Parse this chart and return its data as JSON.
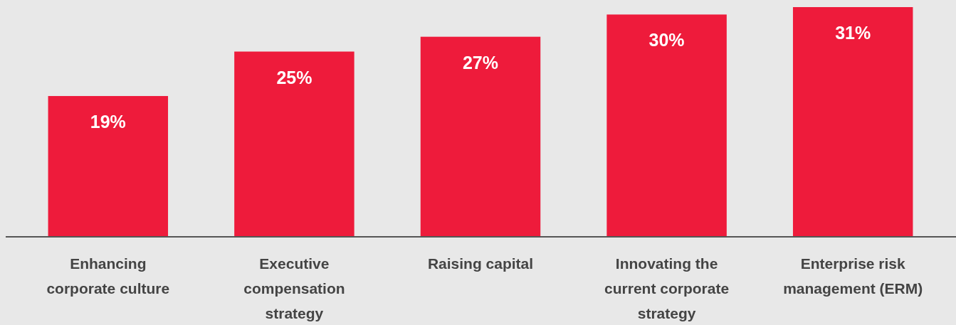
{
  "chart_data": {
    "type": "bar",
    "relative": false,
    "categories": [
      "Enhancing corporate culture",
      "Executive compensation strategy",
      "Raising capital",
      "Innovating the current corporate strategy",
      "Enterprise risk management (ERM)"
    ],
    "values": [
      19,
      25,
      27,
      30,
      31
    ],
    "color": "#ee1b3b",
    "data_labels": true,
    "value_labels": [
      "19%",
      "25%",
      "27%",
      "30%",
      "31%"
    ],
    "grid": false
  }
}
